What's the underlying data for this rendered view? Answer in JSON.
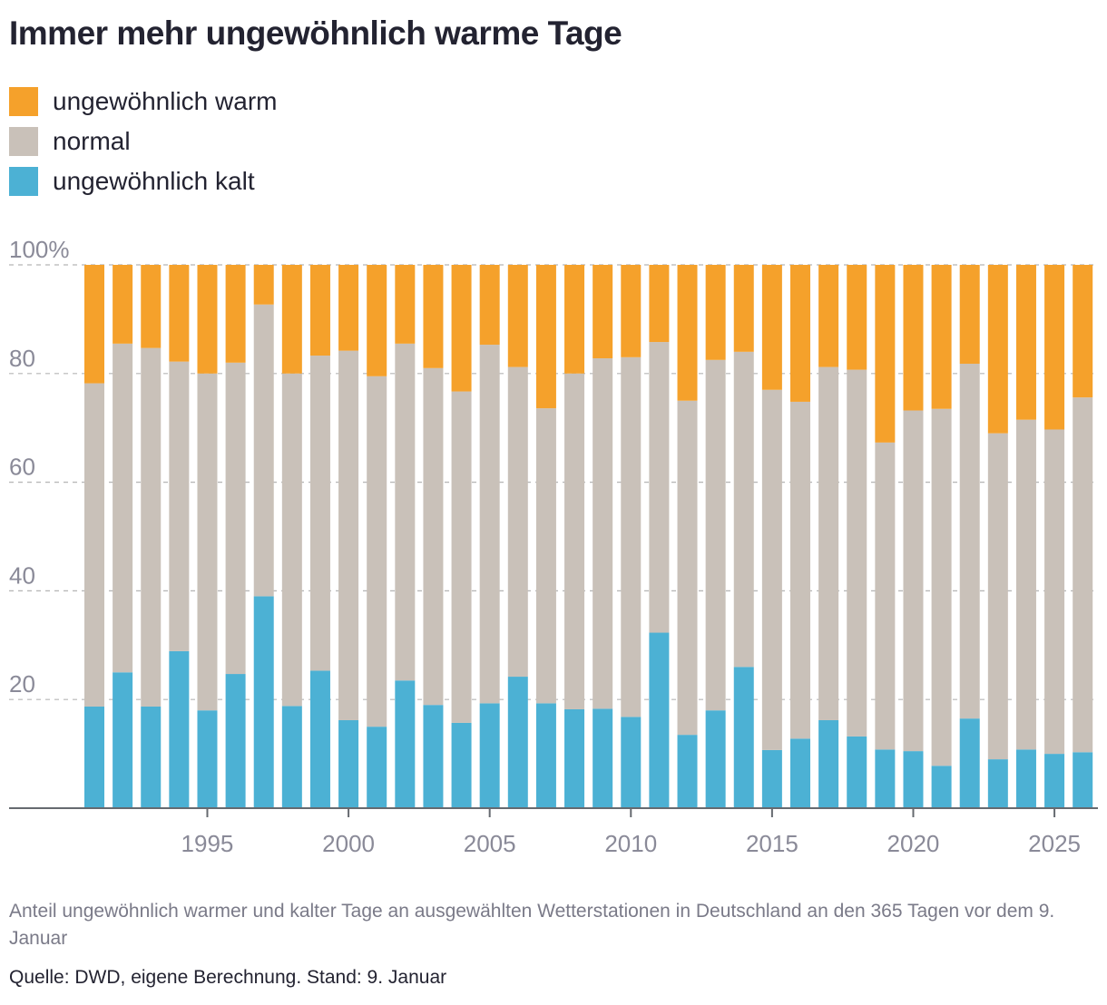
{
  "title": "Immer mehr ungewöhnlich warme Tage",
  "legend": [
    {
      "label": "ungewöhnlich warm",
      "color": "#f5a12b"
    },
    {
      "label": "normal",
      "color": "#c9c1b9"
    },
    {
      "label": "ungewöhnlich kalt",
      "color": "#4cb1d4"
    }
  ],
  "subtitle": "Anteil ungewöhnlich warmer und kalter Tage an ausgewählten Wetterstationen in Deutschland an den 365 Tagen vor dem 9. Januar",
  "source": "Quelle: DWD, eigene Berechnung. Stand: 9. Januar",
  "chart_data": {
    "type": "bar",
    "stacked": true,
    "title": "Immer mehr ungewöhnlich warme Tage",
    "ylim": [
      0,
      100
    ],
    "y_ticks": [
      {
        "value": 20,
        "label": "20"
      },
      {
        "value": 40,
        "label": "40"
      },
      {
        "value": 60,
        "label": "60"
      },
      {
        "value": 80,
        "label": "80"
      },
      {
        "value": 100,
        "label": "100%"
      }
    ],
    "x_tick_labels": [
      "1995",
      "2000",
      "2005",
      "2010",
      "2015",
      "2020",
      "2025"
    ],
    "grid": "horizontal dashed",
    "legend_position": "top-left",
    "categories": [
      1991,
      1992,
      1993,
      1994,
      1995,
      1996,
      1997,
      1998,
      1999,
      2000,
      2001,
      2002,
      2003,
      2004,
      2005,
      2006,
      2007,
      2008,
      2009,
      2010,
      2011,
      2012,
      2013,
      2014,
      2015,
      2016,
      2017,
      2018,
      2019,
      2020,
      2021,
      2022,
      2023,
      2024,
      2025,
      2026
    ],
    "series": [
      {
        "name": "ungewöhnlich kalt",
        "color": "#4cb1d4",
        "values": [
          18.7,
          25.0,
          18.7,
          28.9,
          18.0,
          24.7,
          39.0,
          18.8,
          25.3,
          16.2,
          15.0,
          23.5,
          19.0,
          15.7,
          19.3,
          24.2,
          19.3,
          18.2,
          18.3,
          16.8,
          32.3,
          13.5,
          18.0,
          26.0,
          10.7,
          12.8,
          16.2,
          13.2,
          10.8,
          10.5,
          7.8,
          16.5,
          9.0,
          10.8,
          10.0,
          10.3
        ]
      },
      {
        "name": "normal",
        "color": "#c9c1b9",
        "values": [
          59.5,
          60.5,
          66.0,
          53.3,
          62.0,
          57.3,
          53.7,
          61.2,
          58.0,
          68.0,
          64.5,
          62.0,
          62.0,
          61.0,
          66.0,
          57.0,
          54.3,
          61.8,
          64.5,
          66.2,
          53.5,
          61.5,
          64.5,
          58.0,
          66.3,
          62.0,
          65.0,
          67.5,
          56.5,
          62.7,
          65.7,
          65.3,
          60.0,
          60.7,
          59.7,
          65.3
        ]
      },
      {
        "name": "ungewöhnlich warm",
        "color": "#f5a12b",
        "values": [
          21.8,
          14.5,
          15.3,
          17.8,
          20.0,
          18.0,
          7.3,
          20.0,
          16.7,
          15.8,
          20.5,
          14.5,
          19.0,
          23.3,
          14.7,
          18.8,
          26.4,
          20.0,
          17.2,
          17.0,
          14.2,
          25.0,
          17.5,
          16.0,
          23.0,
          25.2,
          18.8,
          19.3,
          32.7,
          26.8,
          26.5,
          18.2,
          31.0,
          28.5,
          30.3,
          24.4
        ]
      }
    ]
  }
}
